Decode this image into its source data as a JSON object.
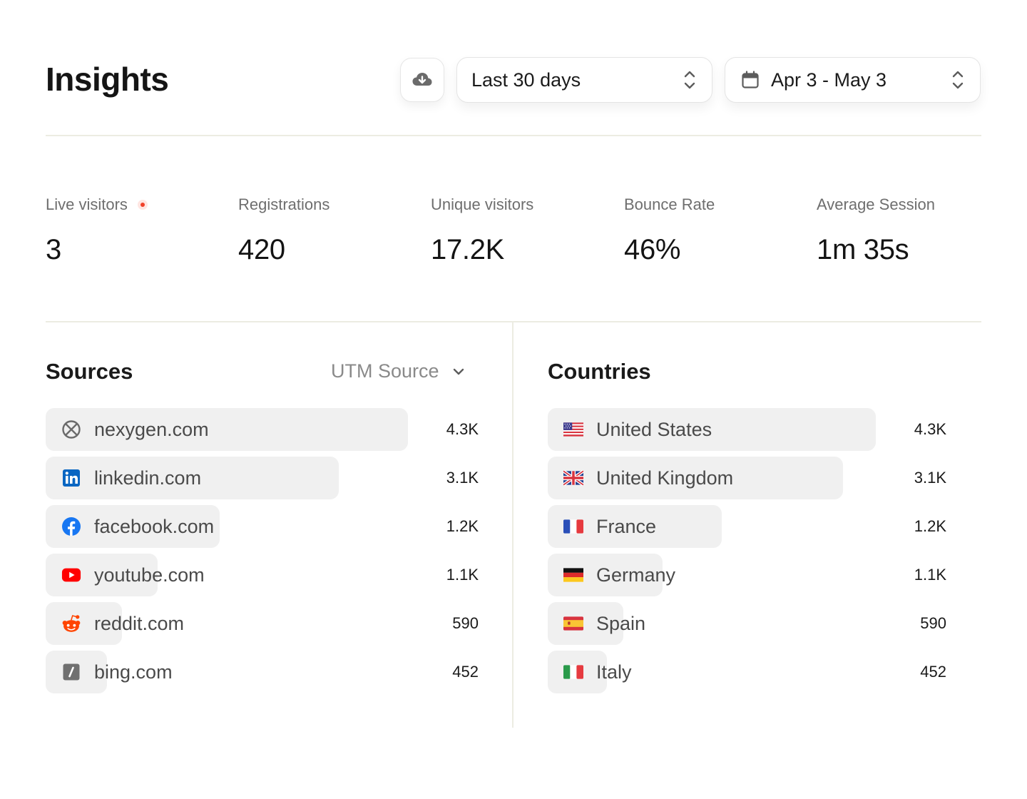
{
  "header": {
    "title": "Insights",
    "range_select": {
      "value": "Last 30 days"
    },
    "date_select": {
      "value": "Apr 3 - May 3"
    }
  },
  "stats": [
    {
      "label": "Live visitors",
      "value": "3"
    },
    {
      "label": "Registrations",
      "value": "420"
    },
    {
      "label": "Unique visitors",
      "value": "17.2K"
    },
    {
      "label": "Bounce Rate",
      "value": "46%"
    },
    {
      "label": "Average Session",
      "value": "1m 35s"
    }
  ],
  "sources": {
    "title": "Sources",
    "filter_label": "UTM Source",
    "items": [
      {
        "label": "nexygen.com",
        "value": "4.3K",
        "share": 1.0,
        "icon": "nexygen-icon"
      },
      {
        "label": "linkedin.com",
        "value": "3.1K",
        "share": 0.81,
        "icon": "linkedin-icon"
      },
      {
        "label": "facebook.com",
        "value": "1.2K",
        "share": 0.48,
        "icon": "facebook-icon"
      },
      {
        "label": "youtube.com",
        "value": "1.1K",
        "share": 0.31,
        "icon": "youtube-icon"
      },
      {
        "label": "reddit.com",
        "value": "590",
        "share": 0.21,
        "icon": "reddit-icon"
      },
      {
        "label": "bing.com",
        "value": "452",
        "share": 0.17,
        "icon": "bing-icon"
      }
    ]
  },
  "countries": {
    "title": "Countries",
    "items": [
      {
        "label": "United States",
        "value": "4.3K",
        "share": 1.0,
        "icon": "us-flag-icon"
      },
      {
        "label": "United Kingdom",
        "value": "3.1K",
        "share": 0.9,
        "icon": "uk-flag-icon"
      },
      {
        "label": "France",
        "value": "1.2K",
        "share": 0.53,
        "icon": "france-flag-icon"
      },
      {
        "label": "Germany",
        "value": "1.1K",
        "share": 0.35,
        "icon": "germany-flag-icon"
      },
      {
        "label": "Spain",
        "value": "590",
        "share": 0.23,
        "icon": "spain-flag-icon"
      },
      {
        "label": "Italy",
        "value": "452",
        "share": 0.18,
        "icon": "italy-flag-icon"
      }
    ]
  }
}
